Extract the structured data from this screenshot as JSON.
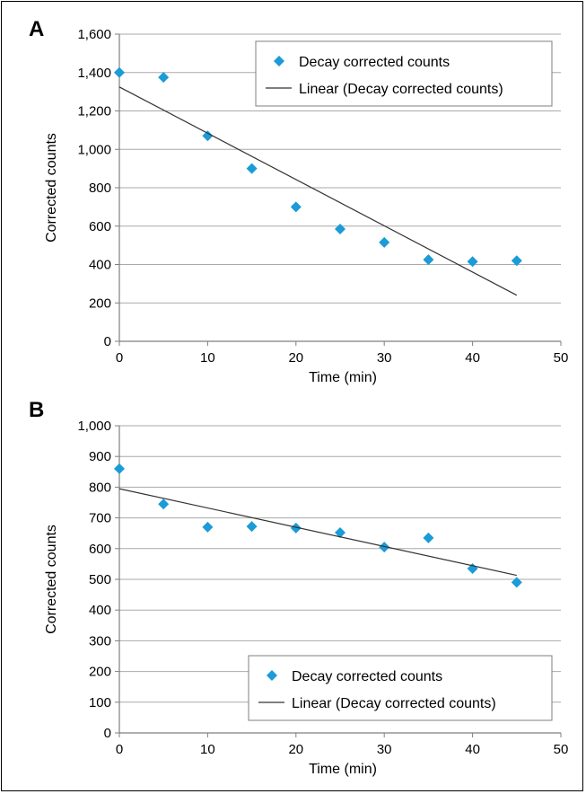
{
  "chart_data": [
    {
      "panel": "A",
      "type": "scatter",
      "xlabel": "Time (min)",
      "ylabel": "Corrected counts",
      "xlim": [
        0,
        50
      ],
      "ylim": [
        0,
        1600
      ],
      "xticks": [
        0,
        10,
        20,
        30,
        40,
        50
      ],
      "yticks": [
        0,
        200,
        400,
        600,
        800,
        1000,
        1200,
        1400,
        1600
      ],
      "ytick_labels": [
        "0",
        "200",
        "400",
        "600",
        "800",
        "1,000",
        "1,200",
        "1,400",
        "1,600"
      ],
      "grid": true,
      "legend_position": "top-right",
      "series": [
        {
          "name": "Decay corrected counts",
          "kind": "points",
          "color": "#1b9bd7",
          "x": [
            0,
            5,
            10,
            15,
            20,
            25,
            30,
            35,
            40,
            45
          ],
          "y": [
            1400,
            1375,
            1070,
            900,
            700,
            585,
            515,
            425,
            415,
            420
          ]
        },
        {
          "name": "Linear (Decay corrected counts)",
          "kind": "line",
          "color": "#333333",
          "x": [
            0,
            45
          ],
          "y": [
            1325,
            240
          ]
        }
      ]
    },
    {
      "panel": "B",
      "type": "scatter",
      "xlabel": "Time (min)",
      "ylabel": "Corrected counts",
      "xlim": [
        0,
        50
      ],
      "ylim": [
        0,
        1000
      ],
      "xticks": [
        0,
        10,
        20,
        30,
        40,
        50
      ],
      "yticks": [
        0,
        100,
        200,
        300,
        400,
        500,
        600,
        700,
        800,
        900,
        1000
      ],
      "ytick_labels": [
        "0",
        "100",
        "200",
        "300",
        "400",
        "500",
        "600",
        "700",
        "800",
        "900",
        "1,000"
      ],
      "grid": true,
      "legend_position": "bottom-right",
      "series": [
        {
          "name": "Decay corrected counts",
          "kind": "points",
          "color": "#1b9bd7",
          "x": [
            0,
            5,
            10,
            15,
            20,
            25,
            30,
            35,
            40,
            45
          ],
          "y": [
            860,
            745,
            670,
            672,
            667,
            652,
            605,
            635,
            535,
            490
          ]
        },
        {
          "name": "Linear (Decay corrected counts)",
          "kind": "line",
          "color": "#333333",
          "x": [
            0,
            45
          ],
          "y": [
            795,
            513
          ]
        }
      ]
    }
  ]
}
